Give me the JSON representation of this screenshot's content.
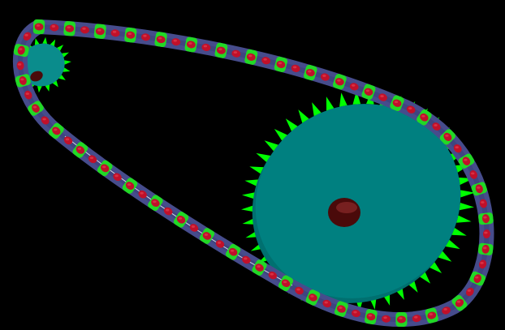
{
  "scene": {
    "background": "#000000",
    "colors": {
      "large_disk": "#008080",
      "large_disk_rim": "#007070",
      "small_disk": "#0a8c8c",
      "teeth": "#00ff00",
      "chain_band": "#464c8c",
      "chain_band_dark": "#3a3f78",
      "link_plate": "#20e020",
      "pin": "#c0102a",
      "pin_highlight": "#e24050",
      "hub": "#4a0a0a",
      "hub_highlight": "#8a2a2a",
      "highlight_line": "#ffffff"
    },
    "icons": {
      "large_sprocket": "gear-icon",
      "small_sprocket": "gear-icon",
      "chain": "chain-icon"
    },
    "counts": {
      "large_sprocket_teeth": 48,
      "small_sprocket_teeth": 18
    }
  }
}
